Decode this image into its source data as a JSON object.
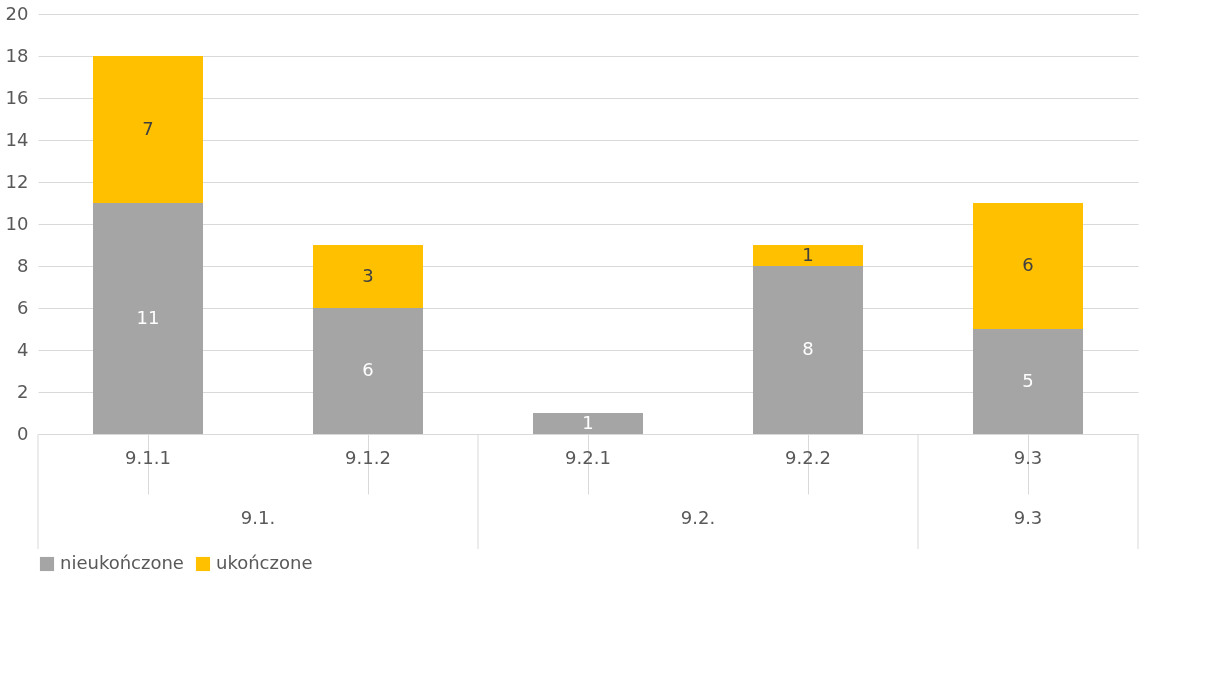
{
  "chart_data": {
    "type": "bar",
    "stacked": true,
    "categories": [
      "9.1.1",
      "9.1.2",
      "9.2.1",
      "9.2.2",
      "9.3"
    ],
    "series": [
      {
        "name": "nieukończone",
        "color": "#a5a5a5",
        "values": [
          11,
          6,
          1,
          8,
          5
        ]
      },
      {
        "name": "ukończone",
        "color": "#ffc000",
        "values": [
          7,
          3,
          null,
          1,
          6
        ]
      }
    ],
    "ylim": [
      0,
      20
    ],
    "yticks": [
      0,
      2,
      4,
      6,
      8,
      10,
      12,
      14,
      16,
      18,
      20
    ],
    "grid": "y",
    "legend": "bottom",
    "data_labels": true,
    "annotations": [
      "9.1.",
      "9.2.",
      "9.3"
    ]
  }
}
